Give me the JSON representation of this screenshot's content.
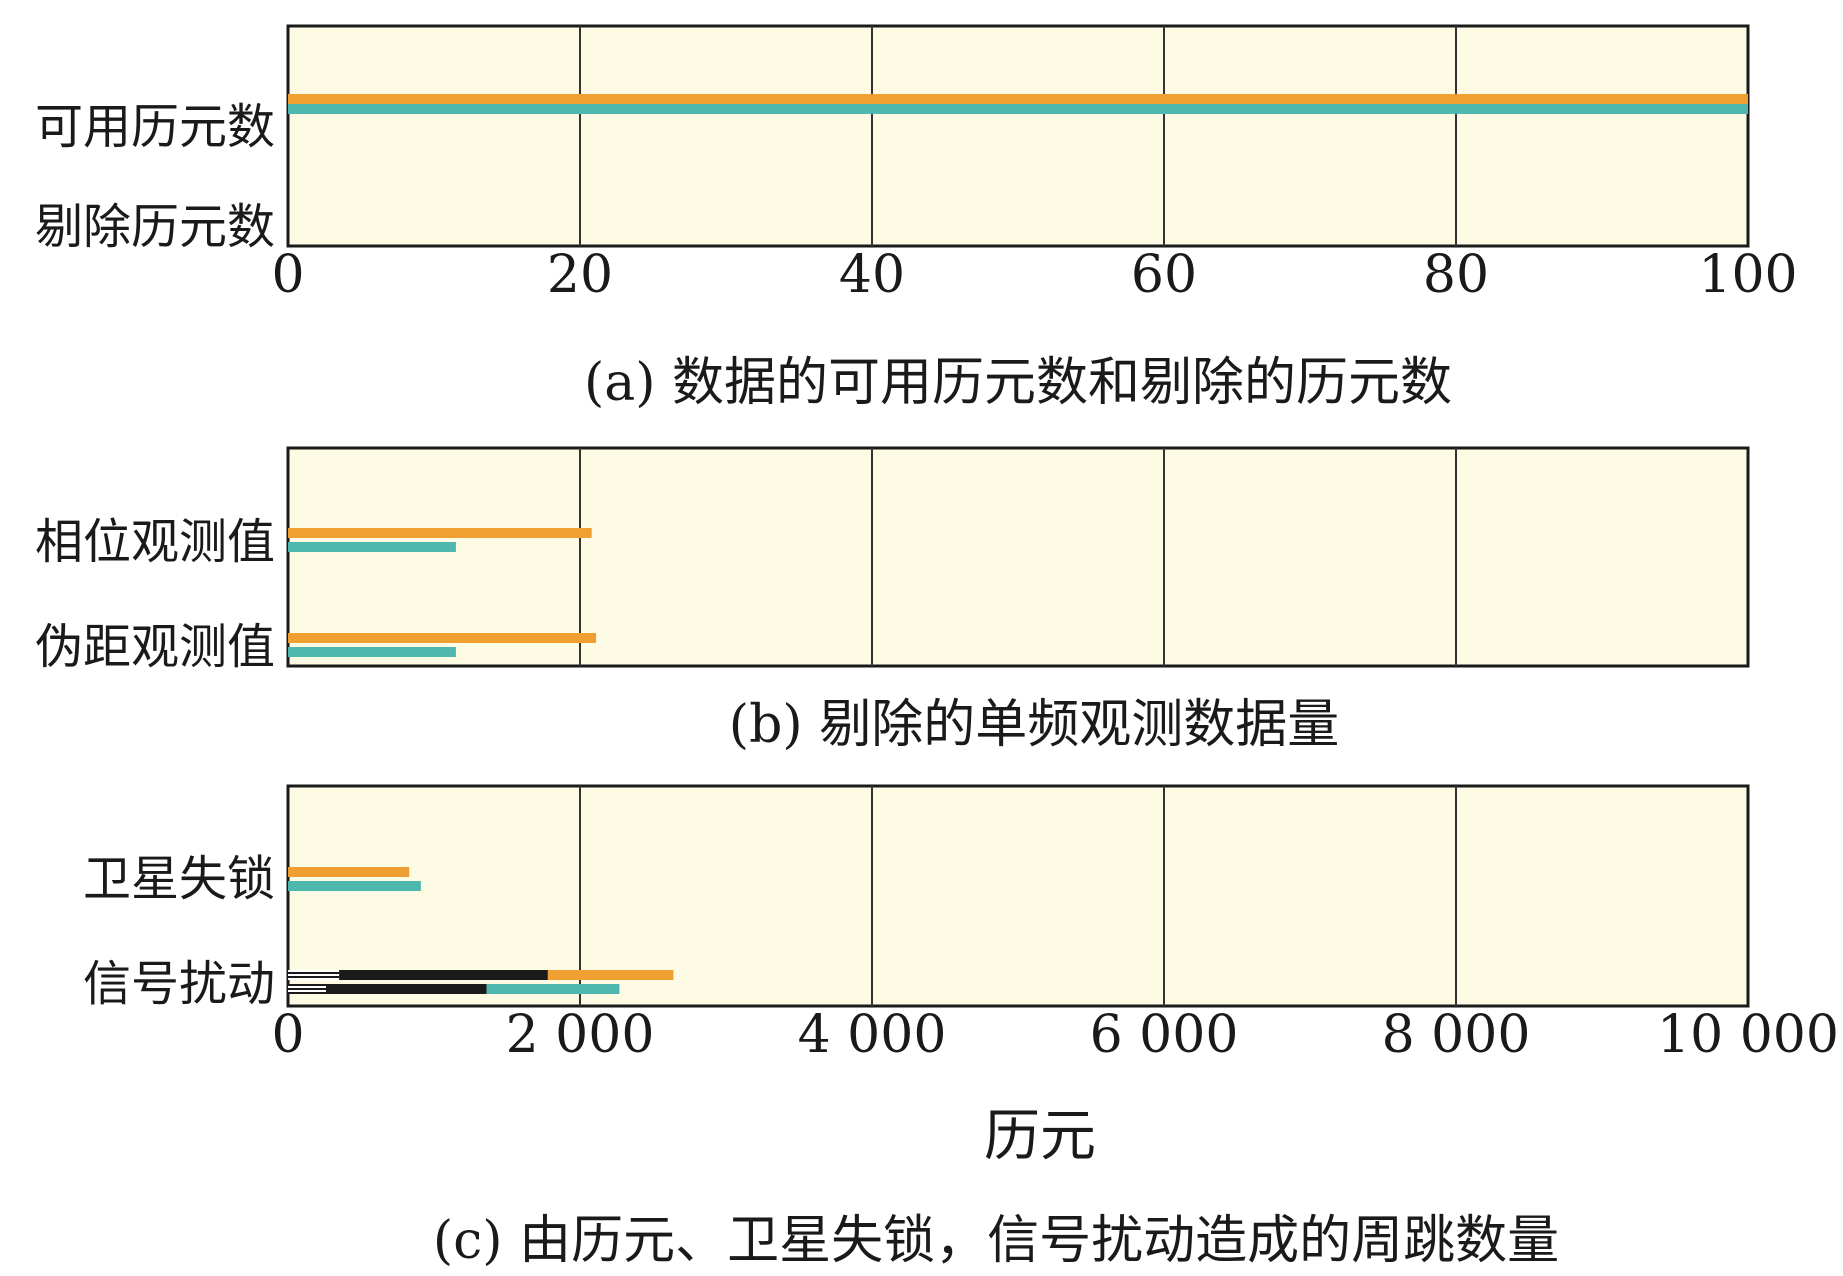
{
  "colors": {
    "background": "#fdfbe4",
    "orange": "#f0a030",
    "teal": "#4fb8ae",
    "black": "#1a1a1a",
    "frame": "#1a1a1a",
    "grid": "#333333"
  },
  "chart_data": [
    {
      "type": "bar",
      "orientation": "horizontal",
      "caption": "(a) 数据的可用历元数和剔除的历元数",
      "categories": [
        "可用历元数",
        "剔除历元数"
      ],
      "xlim": [
        0,
        100
      ],
      "xticks": [
        0,
        20,
        40,
        60,
        80,
        100
      ],
      "xtick_labels": [
        "0",
        "20",
        "40",
        "60",
        "80",
        "100"
      ],
      "grid": true,
      "series": [
        {
          "color": "orange",
          "values": [
            100,
            0
          ]
        },
        {
          "color": "teal",
          "values": [
            100,
            0
          ]
        }
      ]
    },
    {
      "type": "bar",
      "orientation": "horizontal",
      "caption": "(b) 剔除的单频观测数据量",
      "categories": [
        "相位观测值",
        "伪距观测值"
      ],
      "xlim": [
        0,
        10000
      ],
      "grid": true,
      "series": [
        {
          "color": "orange",
          "values": [
            2080,
            2110
          ]
        },
        {
          "color": "teal",
          "values": [
            1150,
            1150
          ]
        }
      ]
    },
    {
      "type": "bar",
      "orientation": "horizontal",
      "stacked": true,
      "caption": "(c) 由历元、卫星失锁，信号扰动造成的周跳数量",
      "categories": [
        "卫星失锁",
        "信号扰动"
      ],
      "xlim": [
        0,
        10000
      ],
      "xticks": [
        0,
        2000,
        4000,
        6000,
        8000,
        10000
      ],
      "xtick_labels": [
        "0",
        "2 000",
        "4 000",
        "6 000",
        "8 000",
        "10 000"
      ],
      "xlabel": "历元",
      "grid": true,
      "series": [
        {
          "color": "orange",
          "segments": [
            [
              0,
              830
            ],
            [
              1780,
              2640
            ]
          ],
          "segments_black": [
            [],
            [
              350,
              1780
            ]
          ],
          "segments_hatched": [
            [],
            [
              0,
              350
            ]
          ]
        },
        {
          "color": "teal",
          "segments": [
            [
              0,
              910
            ],
            [
              1360,
              2270
            ]
          ],
          "segments_black": [
            [],
            [
              260,
              1360
            ]
          ],
          "segments_hatched": [
            [],
            [
              0,
              260
            ]
          ]
        }
      ]
    }
  ]
}
